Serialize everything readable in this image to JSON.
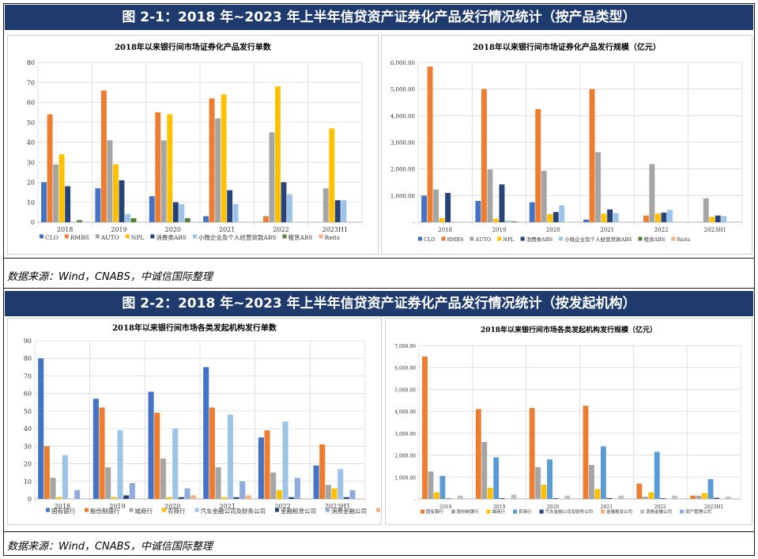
{
  "header1": "图 2-1：2018 年~2023 年上半年信贷资产证券化产品发行情况统计（按产品类型）",
  "header2": "图 2-2：2018 年~2023 年上半年信贷资产证券化产品发行情况统计（按发起机构）",
  "source1": "数据来源：Wind，CNABS，中诚信国际整理",
  "source2": "数据来源：Wind，CNABS，中诚信国际整理",
  "chart_data": [
    {
      "id": "c1",
      "type": "bar",
      "title": "2018年以来银行间市场证券化产品发行单数",
      "categories": [
        "2018",
        "2019",
        "2020",
        "2021",
        "2022",
        "2023H1"
      ],
      "ylim": [
        0,
        80
      ],
      "yticks": [
        "0",
        "10",
        "20",
        "30",
        "40",
        "50",
        "60",
        "70",
        "80"
      ],
      "grid": true,
      "legend": "bottom",
      "series": [
        {
          "name": "CLO",
          "color": "#4472c4",
          "values": [
            20,
            17,
            13,
            3,
            0,
            0
          ]
        },
        {
          "name": "RMBS",
          "color": "#ed7d31",
          "values": [
            54,
            66,
            55,
            62,
            3,
            0
          ]
        },
        {
          "name": "AUTO",
          "color": "#a5a5a5",
          "values": [
            29,
            41,
            41,
            52,
            45,
            17
          ]
        },
        {
          "name": "NPL",
          "color": "#ffc000",
          "values": [
            34,
            29,
            54,
            64,
            68,
            47
          ]
        },
        {
          "name": "消费类ABS",
          "color": "#264478",
          "values": [
            18,
            21,
            10,
            16,
            20,
            11
          ]
        },
        {
          "name": "小微企业及个人经营贷款ABS",
          "color": "#9dc3e6",
          "values": [
            0,
            4,
            9,
            9,
            14,
            11
          ]
        },
        {
          "name": "租赁ABS",
          "color": "#548235",
          "values": [
            1,
            2,
            2,
            0,
            0,
            0
          ]
        },
        {
          "name": "Reits",
          "color": "#f4b183",
          "values": [
            0,
            0,
            0,
            0,
            0,
            0
          ]
        }
      ]
    },
    {
      "id": "c2",
      "type": "bar",
      "title": "2018年以来银行间市场证券化产品发行规模（亿元）",
      "categories": [
        "2018",
        "2019",
        "2020",
        "2021",
        "2022",
        "2023H1"
      ],
      "ylim": [
        0,
        6000
      ],
      "yticks": [
        "-",
        "1,000.00",
        "2,000.00",
        "3,000.00",
        "4,000.00",
        "5,000.00",
        "6,000.00"
      ],
      "grid": true,
      "legend": "bottom",
      "series": [
        {
          "name": "CLO",
          "color": "#4472c4",
          "values": [
            1000,
            800,
            750,
            100,
            0,
            0
          ]
        },
        {
          "name": "RMBS",
          "color": "#ed7d31",
          "values": [
            5850,
            5000,
            4250,
            5000,
            250,
            0
          ]
        },
        {
          "name": "AUTO",
          "color": "#a5a5a5",
          "values": [
            1230,
            1980,
            1930,
            2630,
            2180,
            900
          ]
        },
        {
          "name": "NPL",
          "color": "#ffc000",
          "values": [
            150,
            130,
            300,
            320,
            320,
            200
          ]
        },
        {
          "name": "消费类ABS",
          "color": "#264478",
          "values": [
            1100,
            1420,
            380,
            480,
            360,
            250
          ]
        },
        {
          "name": "小微企业及个人经营贷款ABS",
          "color": "#9dc3e6",
          "values": [
            20,
            60,
            630,
            340,
            460,
            230
          ]
        },
        {
          "name": "租赁ABS",
          "color": "#548235",
          "values": [
            0,
            30,
            0,
            0,
            0,
            0
          ]
        },
        {
          "name": "Reits",
          "color": "#f4b183",
          "values": [
            0,
            0,
            0,
            0,
            0,
            0
          ]
        }
      ]
    },
    {
      "id": "c3",
      "type": "bar",
      "title": "2018年以来银行间市场各类发起机构发行单数",
      "categories": [
        "2018",
        "2019",
        "2020",
        "2021",
        "2022",
        "2023H1"
      ],
      "ylim": [
        0,
        90
      ],
      "yticks": [
        "0",
        "10",
        "20",
        "30",
        "40",
        "50",
        "60",
        "70",
        "80",
        "90"
      ],
      "grid": true,
      "legend": "bottom",
      "series": [
        {
          "name": "国有银行",
          "color": "#4472c4",
          "values": [
            80,
            57,
            61,
            75,
            35,
            19
          ]
        },
        {
          "name": "股份制银行",
          "color": "#ed7d31",
          "values": [
            30,
            52,
            49,
            52,
            39,
            31
          ]
        },
        {
          "name": "城商行",
          "color": "#a5a5a5",
          "values": [
            12,
            18,
            23,
            18,
            15,
            8
          ]
        },
        {
          "name": "农商行",
          "color": "#ffc000",
          "values": [
            1,
            1,
            1,
            1,
            5,
            6
          ]
        },
        {
          "name": "汽车金融公司及财务公司",
          "color": "#9dc3e6",
          "values": [
            25,
            39,
            40,
            48,
            44,
            17
          ]
        },
        {
          "name": "金融租赁公司",
          "color": "#264478",
          "values": [
            0,
            2,
            1,
            1,
            1,
            1
          ]
        },
        {
          "name": "消费金融公司",
          "color": "#8faadc",
          "values": [
            5,
            9,
            6,
            10,
            12,
            5
          ]
        },
        {
          "name": "资产管理公司",
          "color": "#f4b183",
          "values": [
            0,
            0,
            2,
            2,
            0,
            0
          ]
        }
      ]
    },
    {
      "id": "c4",
      "type": "bar",
      "title": "2018年以来银行间市场各类发起机构发行规模（亿元）",
      "categories": [
        "2018",
        "2019",
        "2020",
        "2021",
        "2022",
        "2023H1"
      ],
      "ylim": [
        0,
        7000
      ],
      "yticks": [
        "-",
        "1,000.00",
        "2,000.00",
        "3,000.00",
        "4,000.00",
        "5,000.00",
        "6,000.00",
        "7,000.00"
      ],
      "grid": true,
      "legend": "bottom",
      "series": [
        {
          "name": "国有银行",
          "color": "#ed7d31",
          "values": [
            6500,
            4100,
            4150,
            4250,
            700,
            150
          ]
        },
        {
          "name": "股份制银行",
          "color": "#a5a5a5",
          "values": [
            1250,
            2600,
            1450,
            1550,
            100,
            150
          ]
        },
        {
          "name": "城商行",
          "color": "#ffc000",
          "values": [
            300,
            500,
            650,
            450,
            300,
            270
          ]
        },
        {
          "name": "农商行",
          "color": "#5b9bd5",
          "values": [
            1050,
            1900,
            1800,
            2400,
            2150,
            900
          ]
        },
        {
          "name": "汽车金融公司及财务公司",
          "color": "#264478",
          "values": [
            20,
            30,
            30,
            40,
            30,
            50
          ]
        },
        {
          "name": "金融租赁公司",
          "color": "#f4b183",
          "values": [
            10,
            10,
            10,
            10,
            10,
            10
          ]
        },
        {
          "name": "消费金融公司",
          "color": "#bfbfbf",
          "values": [
            150,
            200,
            150,
            150,
            150,
            100
          ]
        },
        {
          "name": "资产管理公司",
          "color": "#8faadc",
          "values": [
            10,
            10,
            10,
            10,
            10,
            10
          ]
        }
      ]
    }
  ]
}
